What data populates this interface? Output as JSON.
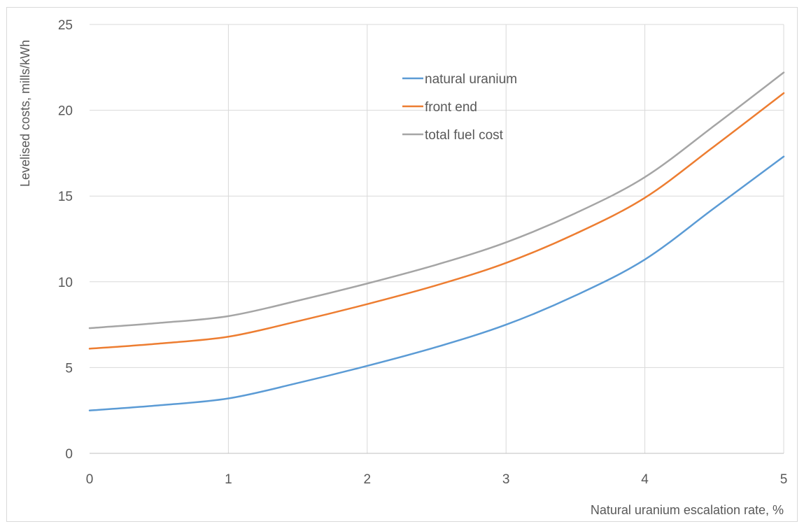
{
  "chart_data": {
    "type": "line",
    "title": "",
    "xlabel": "Natural uranium escalation rate, %",
    "ylabel": "Levelised costs, mills/kWh",
    "xlim": [
      0,
      5
    ],
    "ylim": [
      0,
      25
    ],
    "xticks": [
      "0",
      "1",
      "2",
      "3",
      "4",
      "5"
    ],
    "yticks": [
      "0",
      "5",
      "10",
      "15",
      "20",
      "25"
    ],
    "grid": true,
    "legend_position": "top-center",
    "x": [
      0,
      0.5,
      1,
      1.5,
      2,
      2.5,
      3,
      3.5,
      4,
      4.5,
      5
    ],
    "series": [
      {
        "name": "natural uranium",
        "color": "#5B9BD5",
        "values": [
          2.5,
          2.8,
          3.2,
          4.1,
          5.1,
          6.2,
          7.5,
          9.2,
          11.3,
          14.3,
          17.3
        ]
      },
      {
        "name": "front end",
        "color": "#ED7D31",
        "values": [
          6.1,
          6.4,
          6.8,
          7.7,
          8.7,
          9.8,
          11.1,
          12.8,
          14.9,
          17.9,
          21.0
        ]
      },
      {
        "name": "total fuel cost",
        "color": "#A5A5A5",
        "values": [
          7.3,
          7.6,
          8.0,
          8.9,
          9.9,
          11.0,
          12.3,
          14.0,
          16.1,
          19.1,
          22.2
        ]
      }
    ]
  }
}
